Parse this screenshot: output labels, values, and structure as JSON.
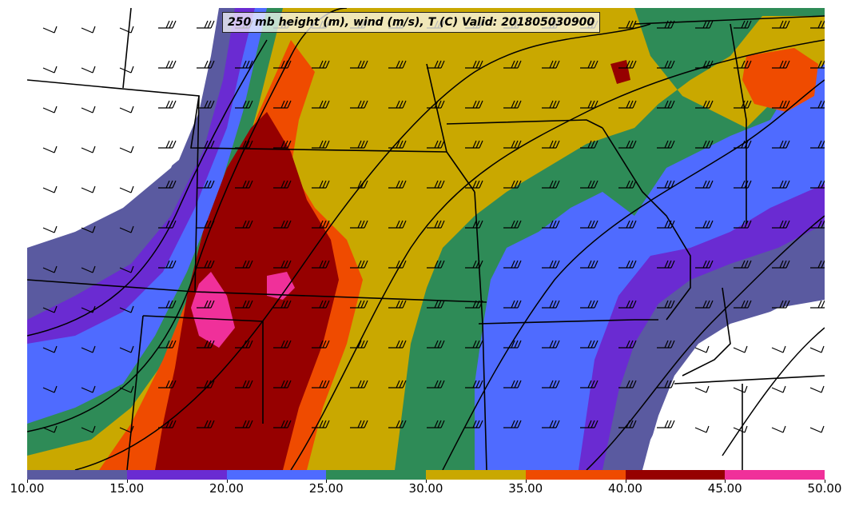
{
  "title": "250 mb height (m), wind (m/s), T (C) Valid: 201805030900",
  "legend": {
    "ticks": [
      "10.00",
      "15.00",
      "20.00",
      "25.00",
      "30.00",
      "35.00",
      "40.00",
      "45.00",
      "50.00"
    ],
    "colors": [
      "#5a5aa0",
      "#6a2bd2",
      "#4f6bff",
      "#2e8b57",
      "#c9a800",
      "#ef4b00",
      "#960000",
      "#f0309a"
    ]
  },
  "colors": {
    "background": "#ffffff",
    "boundaries": "#000000",
    "barbs": "#000000"
  }
}
